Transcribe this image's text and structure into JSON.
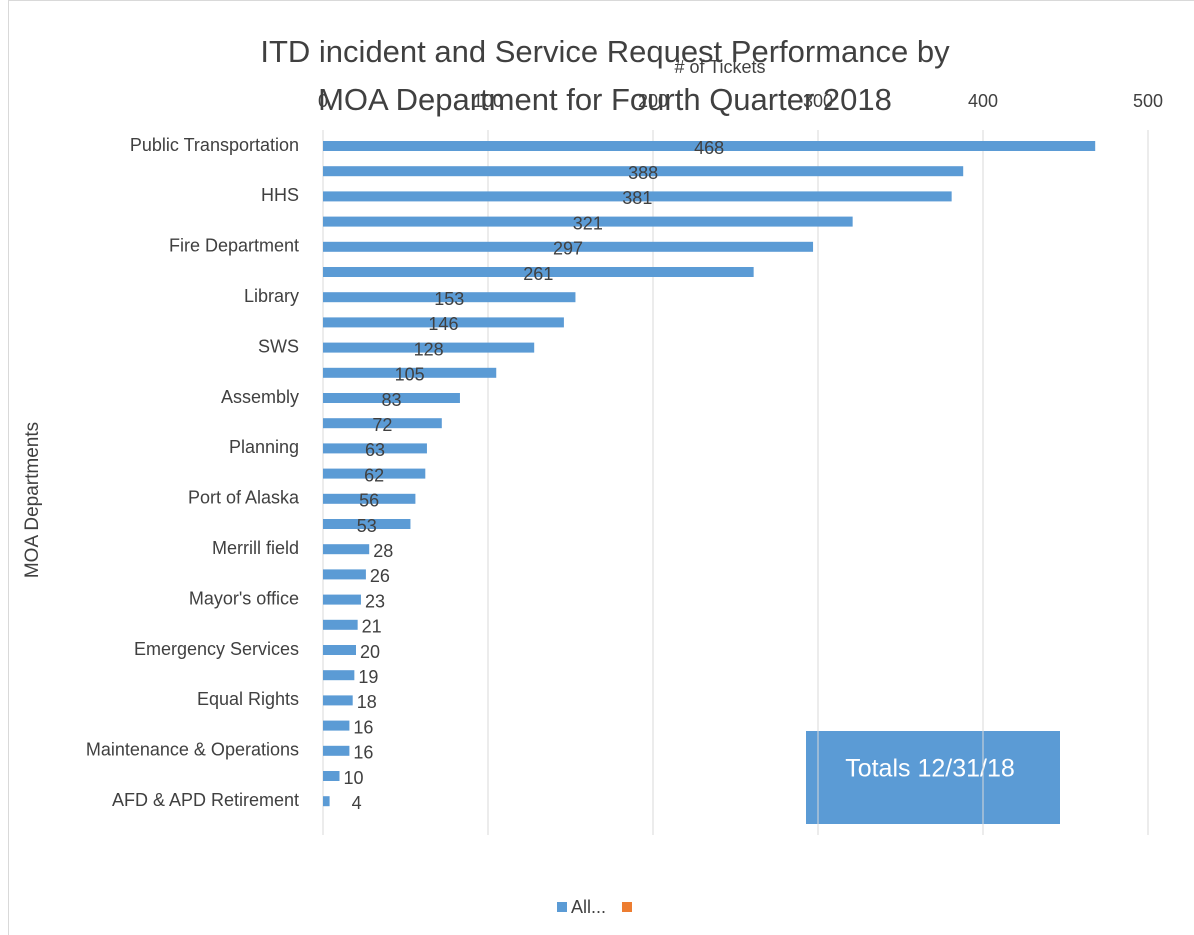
{
  "chart_data": {
    "type": "bar",
    "orientation": "horizontal",
    "title": "ITD incident and Service Request Performance by MOA Department for Fourth Quarter 2018",
    "x_label": "# of Tickets",
    "y_label": "MOA Departments",
    "categories": [
      "Public Transportation",
      null,
      "HHS",
      null,
      "Fire Department",
      null,
      "Library",
      null,
      "SWS",
      null,
      "Assembly",
      null,
      "Planning",
      null,
      "Port of Alaska",
      null,
      "Merrill field",
      null,
      "Mayor's office",
      null,
      "Emergency Services",
      null,
      "Equal Rights",
      null,
      "Maintenance & Operations",
      null,
      "AFD & APD Retirement"
    ],
    "series": [
      {
        "name": "All...",
        "color": "#5b9bd5",
        "values": [
          468,
          388,
          381,
          321,
          297,
          261,
          153,
          146,
          128,
          105,
          83,
          72,
          63,
          62,
          56,
          53,
          28,
          26,
          23,
          21,
          20,
          19,
          18,
          16,
          16,
          10,
          4
        ]
      }
    ],
    "xlim": [
      0,
      500
    ],
    "xticks": [
      0,
      100,
      200,
      300,
      400,
      500
    ],
    "grid": true,
    "annotation": "Totals 12/31/18",
    "legend": "bottom"
  }
}
